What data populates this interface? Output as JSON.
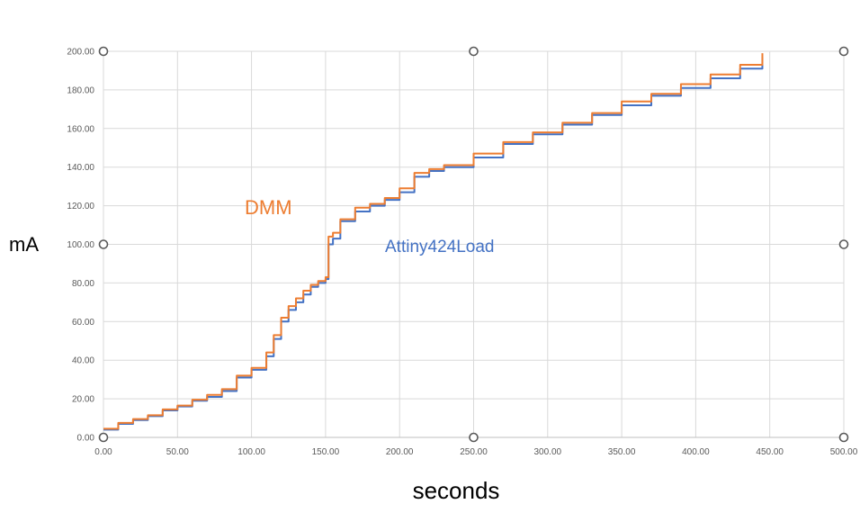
{
  "chart_data": {
    "type": "line",
    "title": "",
    "xlabel": "seconds",
    "ylabel": "mA",
    "xlim": [
      0,
      500
    ],
    "ylim": [
      0,
      200
    ],
    "x_ticks": [
      "0.00",
      "50.00",
      "100.00",
      "150.00",
      "200.00",
      "250.00",
      "300.00",
      "350.00",
      "400.00",
      "450.00",
      "500.00"
    ],
    "y_ticks": [
      "0.00",
      "20.00",
      "40.00",
      "60.00",
      "80.00",
      "100.00",
      "120.00",
      "140.00",
      "160.00",
      "180.00",
      "200.00"
    ],
    "grid": true,
    "legend": "none",
    "series": [
      {
        "name": "Attiny424Load",
        "color": "#4472C4",
        "x": [
          0,
          10,
          20,
          30,
          40,
          50,
          60,
          70,
          80,
          90,
          100,
          110,
          115,
          120,
          125,
          130,
          135,
          140,
          145,
          150,
          152,
          155,
          160,
          170,
          180,
          190,
          200,
          210,
          220,
          230,
          250,
          270,
          290,
          310,
          330,
          350,
          370,
          390,
          410,
          430,
          445
        ],
        "y": [
          4,
          7,
          9,
          11,
          14,
          16,
          19,
          21,
          24,
          31,
          35,
          42,
          51,
          60,
          66,
          70,
          74,
          78,
          80,
          82,
          100,
          103,
          112,
          117,
          120,
          123,
          127,
          135,
          138,
          140,
          145,
          152,
          157,
          162,
          167,
          172,
          177,
          181,
          186,
          191,
          197
        ]
      },
      {
        "name": "DMM",
        "color": "#ED7D31",
        "x": [
          0,
          10,
          20,
          30,
          40,
          50,
          60,
          70,
          80,
          90,
          100,
          110,
          115,
          120,
          125,
          130,
          135,
          140,
          145,
          150,
          152,
          155,
          160,
          170,
          180,
          190,
          200,
          210,
          220,
          230,
          250,
          270,
          290,
          310,
          330,
          350,
          370,
          390,
          410,
          430,
          445
        ],
        "y": [
          4.5,
          7.5,
          9.5,
          11.5,
          14.5,
          16.5,
          19.5,
          22,
          25,
          32,
          36,
          44,
          53,
          62,
          68,
          72,
          76,
          79,
          81,
          83,
          104,
          106,
          113,
          119,
          121,
          124,
          129,
          137,
          139,
          141,
          147,
          153,
          158,
          163,
          168,
          174,
          178,
          183,
          188,
          193,
          199
        ]
      }
    ],
    "annotations": [
      {
        "text": "DMM",
        "series": "DMM"
      },
      {
        "text": "Attiny424Load",
        "series": "Attiny424Load"
      }
    ]
  },
  "labels": {
    "dmm": "DMM",
    "attiny": "Attiny424Load"
  }
}
